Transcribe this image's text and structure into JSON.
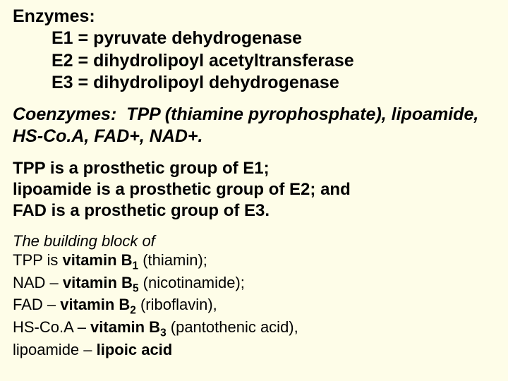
{
  "colors": {
    "background": "#fefde8",
    "text": "#000000"
  },
  "typography": {
    "family": "Comic Sans MS",
    "sizes": [
      25,
      25,
      24,
      22
    ]
  },
  "enzymes": {
    "heading": "Enzymes:",
    "lines": {
      "e1": "E1 = pyruvate dehydrogenase",
      "e2": "E2 = dihydrolipoyl acetyltransferase",
      "e3": "E3 = dihydrolipoyl dehydrogenase"
    }
  },
  "coenzymes": {
    "label": "Coenzymes:",
    "text": "TPP (thiamine pyrophosphate), lipoamide, HS-Co.A, FAD+, NAD+."
  },
  "prosthetic": {
    "p1a": "TPP",
    "p1b": " is a prosthetic group of E1;",
    "p2a": "lipoamide",
    "p2b": " is a prosthetic group of E2; and",
    "p3a": "FAD",
    "p3b": " is a prosthetic group of E3."
  },
  "vitamins": {
    "intro": "The building block of",
    "l1a": "TPP is ",
    "l1b": "vitamin B",
    "l1s": "1",
    "l1c": " (thiamin);",
    "l2a": "NAD – ",
    "l2b": "vitamin B",
    "l2s": "5",
    "l2c": " (nicotinamide);",
    "l3a": "FAD – ",
    "l3b": "vitamin B",
    "l3s": "2",
    "l3c": " (riboflavin),",
    "l4a": "HS-Co.A – ",
    "l4b": "vitamin B",
    "l4s": "3",
    "l4c": " (pantothenic acid),",
    "l5a": "lipoamide – ",
    "l5b": "lipoic acid"
  }
}
